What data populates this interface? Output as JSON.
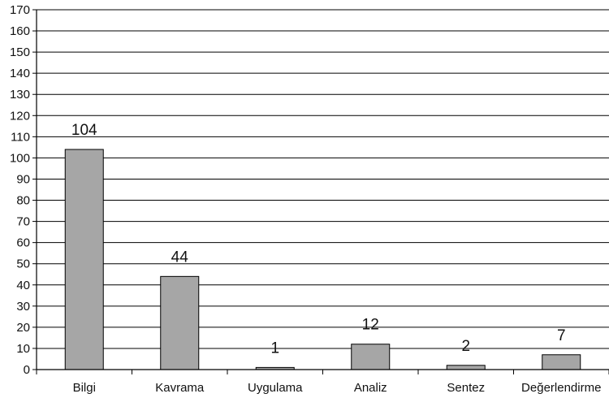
{
  "chart_data": {
    "type": "bar",
    "categories": [
      "Bilgi",
      "Kavrama",
      "Uygulama",
      "Analiz",
      "Sentez",
      "Değerlendirme"
    ],
    "values": [
      104,
      44,
      1,
      12,
      2,
      7
    ],
    "data_labels": [
      "104",
      "44",
      "1",
      "12",
      "2",
      "7"
    ],
    "ylim": [
      0,
      170
    ],
    "y_ticks": [
      0,
      10,
      20,
      30,
      40,
      50,
      60,
      70,
      80,
      90,
      100,
      110,
      120,
      130,
      140,
      150,
      160,
      170
    ],
    "title": "",
    "xlabel": "",
    "ylabel": "",
    "grid": true,
    "legend": "none",
    "colors": {
      "bar_fill": "#a6a6a6",
      "bar_stroke": "#000000",
      "grid": "#000000",
      "axis": "#000000"
    }
  }
}
